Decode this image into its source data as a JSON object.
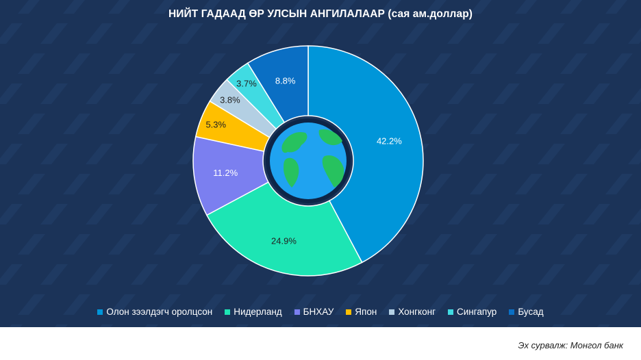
{
  "title": "НИЙТ ГАДААД ӨР УЛСЫН АНГИЛАЛААР (сая ам.доллар)",
  "source": "Эх сурвалж: Монгол банк",
  "chart_data": {
    "type": "pie",
    "style": "donut",
    "title": "НИЙТ ГАДААД ӨР УЛСЫН АНГИЛАЛААР (сая ам.доллар)",
    "legend_position": "bottom",
    "center_icon": "globe-icon",
    "categories": [
      "Олон зээлдэгч оролцсон",
      "Нидерланд",
      "БНХАУ",
      "Япон",
      "Хонгконг",
      "Сингапур",
      "Бусад"
    ],
    "values": [
      42.2,
      24.9,
      11.2,
      5.3,
      3.8,
      3.7,
      8.8
    ],
    "labels": [
      "42.2%",
      "24.9%",
      "11.2%",
      "5.3%",
      "3.8%",
      "3.7%",
      "8.8%"
    ],
    "colors": [
      "#0096d9",
      "#1de5b4",
      "#7b7ff0",
      "#ffbf00",
      "#b3cfe3",
      "#40dbe2",
      "#0a6fc4"
    ],
    "label_colors": [
      "#ffffff",
      "#222222",
      "#ffffff",
      "#222222",
      "#222222",
      "#222222",
      "#ffffff"
    ]
  }
}
